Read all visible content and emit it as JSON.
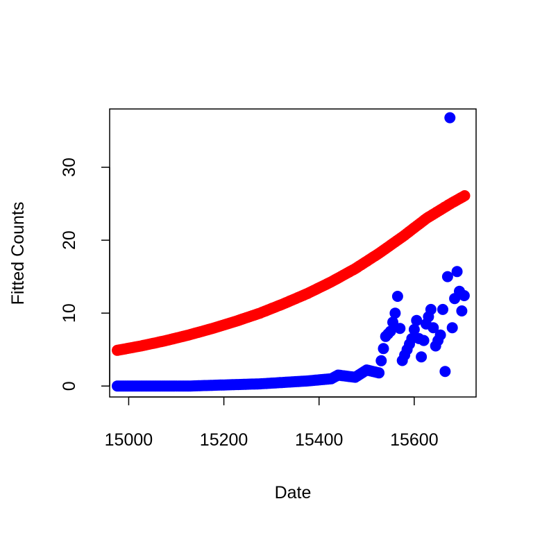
{
  "chart_data": {
    "type": "scatter",
    "title": "",
    "xlabel": "Date",
    "ylabel": "Fitted Counts",
    "xlim": [
      14960,
      15730
    ],
    "ylim": [
      -1.5,
      38
    ],
    "xticks": [
      15000,
      15200,
      15400,
      15600
    ],
    "xtick_labels": [
      "15000",
      "15200",
      "15400",
      "15600"
    ],
    "yticks": [
      0,
      10,
      20,
      30
    ],
    "ytick_labels": [
      "0",
      "10",
      "20",
      "30"
    ],
    "grid": false,
    "legend": "none",
    "series": [
      {
        "color": "#ff0000",
        "marker": "filled-circle",
        "x": [
          14976,
          15026,
          15076,
          15126,
          15176,
          15226,
          15276,
          15326,
          15376,
          15426,
          15476,
          15526,
          15576,
          15626,
          15676,
          15706
        ],
        "y": [
          4.9,
          5.5,
          6.2,
          7.0,
          7.9,
          8.9,
          10.0,
          11.3,
          12.7,
          14.3,
          16.1,
          18.2,
          20.5,
          23.0,
          25.0,
          26.1
        ]
      },
      {
        "color": "#0000ff",
        "marker": "filled-circle",
        "x": [
          14976,
          15026,
          15076,
          15126,
          15176,
          15226,
          15276,
          15326,
          15376,
          15426,
          15440,
          15476,
          15500,
          15526,
          15540,
          15550,
          15560,
          15565,
          15575,
          15585,
          15595,
          15605,
          15615,
          15625,
          15635,
          15645,
          15655,
          15660,
          15665,
          15670,
          15675,
          15680,
          15685,
          15690,
          15695,
          15700,
          15705
        ],
        "y": [
          0.0,
          0.0,
          0.0,
          0.0,
          0.1,
          0.2,
          0.3,
          0.5,
          0.7,
          1.0,
          1.5,
          1.2,
          2.2,
          1.8,
          6.8,
          7.5,
          10.0,
          12.3,
          3.5,
          5.0,
          6.5,
          9.0,
          4.0,
          8.5,
          10.5,
          5.5,
          7.0,
          10.5,
          2.0,
          15.0,
          36.8,
          8.0,
          12.0,
          15.7,
          13.0,
          10.3,
          12.4
        ]
      }
    ]
  }
}
